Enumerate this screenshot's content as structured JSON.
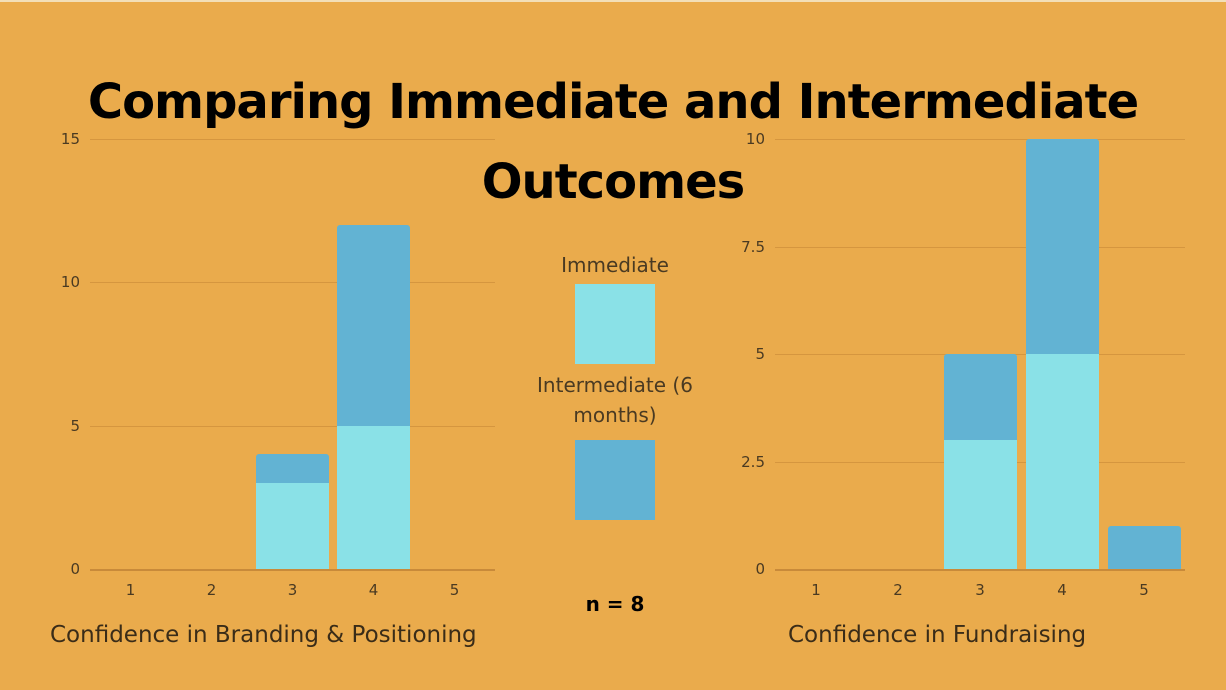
{
  "title": "Comparing Immediate and Intermediate Outcomes",
  "legend": {
    "items": [
      {
        "label": "Immediate",
        "color": "#8ae1e7"
      },
      {
        "label": "Intermediate (6 months)",
        "color": "#62b3d3"
      }
    ]
  },
  "n_label": "n = 8",
  "background_color": "#eaab4c",
  "chart_data": [
    {
      "type": "bar",
      "stacked": true,
      "title": "",
      "xlabel": "Confidence in Branding & Positioning",
      "ylabel": "",
      "categories": [
        "1",
        "2",
        "3",
        "4",
        "5"
      ],
      "ylim": [
        0,
        15
      ],
      "yticks": [
        0,
        5,
        10,
        15
      ],
      "grid": true,
      "series": [
        {
          "name": "Immediate",
          "color": "#8ae1e7",
          "values": [
            0,
            0,
            3,
            5,
            0
          ]
        },
        {
          "name": "Intermediate (6 months)",
          "color": "#62b3d3",
          "values": [
            0,
            0,
            1,
            7,
            0
          ]
        }
      ]
    },
    {
      "type": "bar",
      "stacked": true,
      "title": "",
      "xlabel": "Confidence in Fundraising",
      "ylabel": "",
      "categories": [
        "1",
        "2",
        "3",
        "4",
        "5"
      ],
      "ylim": [
        0,
        10
      ],
      "yticks": [
        0,
        2.5,
        5,
        7.5,
        10
      ],
      "grid": true,
      "series": [
        {
          "name": "Immediate",
          "color": "#8ae1e7",
          "values": [
            0,
            0,
            3,
            5,
            0
          ]
        },
        {
          "name": "Intermediate (6 months)",
          "color": "#62b3d3",
          "values": [
            0,
            0,
            2,
            5,
            1
          ]
        }
      ]
    }
  ]
}
